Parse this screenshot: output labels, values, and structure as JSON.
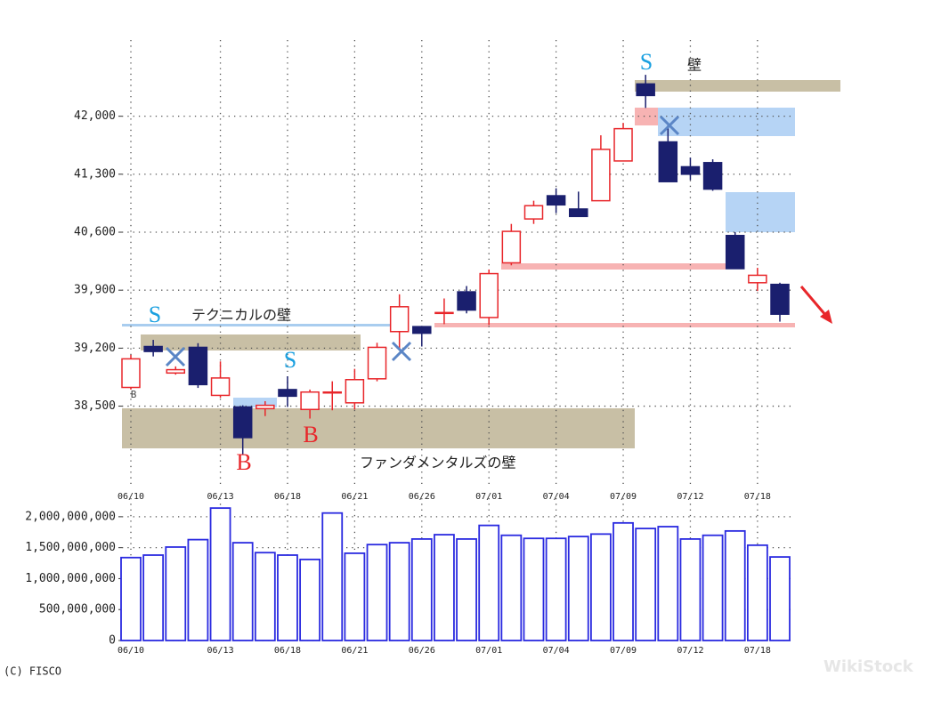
{
  "chart_data": [
    {
      "type": "candlestick",
      "categories": [
        "06/10",
        null,
        null,
        null,
        "06/13",
        null,
        null,
        "06/18",
        null,
        null,
        "06/21",
        null,
        null,
        "06/26",
        null,
        null,
        "07/01",
        null,
        null,
        "07/04",
        null,
        null,
        "07/09",
        null,
        null,
        "07/12",
        null,
        null,
        "07/18",
        null
      ],
      "open": [
        38726,
        39220,
        38900,
        39210,
        38630,
        38490,
        38470,
        38700,
        38460,
        38660,
        38540,
        38830,
        39400,
        39460,
        39620,
        39880,
        39570,
        40230,
        40760,
        41040,
        40880,
        40980,
        41460,
        42390,
        41690,
        41390,
        41440,
        40560,
        39990,
        39970
      ],
      "high": [
        39120,
        39300,
        38980,
        39260,
        39040,
        38510,
        38560,
        38860,
        38700,
        38800,
        38950,
        39265,
        39850,
        39460,
        39800,
        39950,
        40150,
        40700,
        40980,
        41130,
        41090,
        41770,
        41920,
        42500,
        41890,
        41500,
        41480,
        40600,
        40170,
        39990
      ],
      "low": [
        38700,
        39100,
        38880,
        38720,
        38600,
        37920,
        38380,
        38490,
        38350,
        38450,
        38460,
        38800,
        39180,
        39220,
        39490,
        39620,
        39480,
        40200,
        40700,
        40830,
        40790,
        40980,
        41460,
        42100,
        41210,
        41230,
        41100,
        40160,
        39890,
        39520
      ],
      "close": [
        39071,
        39160,
        38940,
        38760,
        38840,
        38120,
        38510,
        38620,
        38670,
        38670,
        38820,
        39210,
        39700,
        39380,
        39630,
        39660,
        40100,
        40610,
        40920,
        40930,
        40790,
        41600,
        41850,
        42250,
        41210,
        41300,
        41120,
        40160,
        40080,
        39610
      ],
      "up_color": "#e8262a",
      "down_color": "#1a1f6e",
      "ylim": [
        37550,
        42920
      ],
      "yticks": [
        {
          "value": 38500,
          "label": "38,500"
        },
        {
          "value": 39200,
          "label": "39,200"
        },
        {
          "value": 39900,
          "label": "39,900"
        },
        {
          "value": 40600,
          "label": "40,600"
        },
        {
          "value": 41300,
          "label": "41,300"
        },
        {
          "value": 42000,
          "label": "42,000"
        }
      ],
      "grid": true,
      "annotations": [
        "S",
        "S",
        "S",
        "B",
        "B",
        "テクニカルの壁",
        "壁",
        "ファンダメンタルズの壁",
        "B"
      ]
    },
    {
      "type": "bar",
      "categories": [
        "06/10",
        null,
        null,
        null,
        "06/13",
        null,
        null,
        "06/18",
        null,
        null,
        "06/21",
        null,
        null,
        "06/26",
        null,
        null,
        "07/01",
        null,
        null,
        "07/04",
        null,
        null,
        "07/09",
        null,
        null,
        "07/12",
        null,
        null,
        "07/18",
        null
      ],
      "values": [
        1340000000,
        1380000000,
        1510000000,
        1630000000,
        2140000000,
        1580000000,
        1420000000,
        1380000000,
        1310000000,
        2060000000,
        1410000000,
        1550000000,
        1580000000,
        1640000000,
        1710000000,
        1640000000,
        1860000000,
        1700000000,
        1650000000,
        1650000000,
        1680000000,
        1720000000,
        1900000000,
        1810000000,
        1840000000,
        1640000000,
        1700000000,
        1770000000,
        1540000000,
        1350000000
      ],
      "color": "#2a2ae0",
      "ylim": [
        0,
        2300000000
      ],
      "yticks": [
        0,
        {
          "value": 500000000,
          "label": "500,000,000"
        },
        {
          "value": 1000000000,
          "label": "1,000,000,000"
        },
        {
          "value": 1500000000,
          "label": "1,500,000,000"
        },
        {
          "value": 2000000000,
          "label": "2,000,000,000"
        }
      ],
      "grid": true
    }
  ],
  "source": "(C) FISCO",
  "watermark": "WikiStock"
}
